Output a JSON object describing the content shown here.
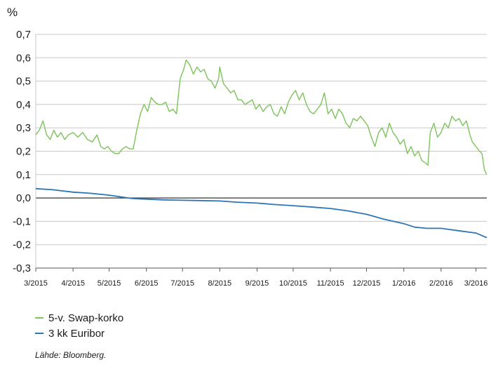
{
  "chart_data": {
    "type": "line",
    "title": "",
    "ylabel": "%",
    "xlabel": "",
    "ylim": [
      -0.3,
      0.7
    ],
    "yticks": [
      0.7,
      0.6,
      0.5,
      0.4,
      0.3,
      0.2,
      0.1,
      0.0,
      -0.1,
      -0.2,
      -0.3
    ],
    "ytick_labels": [
      "0,7",
      "0,6",
      "0,5",
      "0,4",
      "0,3",
      "0,2",
      "0,1",
      "0,0",
      "-0,1",
      "-0,2",
      "-0,3"
    ],
    "x_range": [
      "2015-03-01",
      "2016-03-10"
    ],
    "xtick_labels": [
      "3/2015",
      "4/2015",
      "5/2015",
      "6/2015",
      "7/2015",
      "8/2015",
      "9/2015",
      "10/2015",
      "11/2015",
      "12/2015",
      "1/2016",
      "2/2016",
      "3/2016"
    ],
    "xticks": [
      "2015-03-01",
      "2015-04-01",
      "2015-05-01",
      "2015-06-01",
      "2015-07-01",
      "2015-08-01",
      "2015-09-01",
      "2015-10-01",
      "2015-11-01",
      "2015-12-01",
      "2016-01-01",
      "2016-02-01",
      "2016-03-01"
    ],
    "grid": true,
    "legend_position": "bottom-left",
    "series": [
      {
        "name": "5-v. Swap-korko",
        "color": "#7cc35a",
        "points": [
          [
            "2015-03-01",
            0.27
          ],
          [
            "2015-03-04",
            0.29
          ],
          [
            "2015-03-07",
            0.33
          ],
          [
            "2015-03-10",
            0.27
          ],
          [
            "2015-03-13",
            0.25
          ],
          [
            "2015-03-16",
            0.29
          ],
          [
            "2015-03-19",
            0.26
          ],
          [
            "2015-03-22",
            0.28
          ],
          [
            "2015-03-25",
            0.25
          ],
          [
            "2015-03-28",
            0.27
          ],
          [
            "2015-04-01",
            0.28
          ],
          [
            "2015-04-05",
            0.26
          ],
          [
            "2015-04-09",
            0.28
          ],
          [
            "2015-04-13",
            0.25
          ],
          [
            "2015-04-17",
            0.24
          ],
          [
            "2015-04-21",
            0.27
          ],
          [
            "2015-04-24",
            0.22
          ],
          [
            "2015-04-27",
            0.21
          ],
          [
            "2015-04-30",
            0.22
          ],
          [
            "2015-05-03",
            0.2
          ],
          [
            "2015-05-06",
            0.19
          ],
          [
            "2015-05-09",
            0.19
          ],
          [
            "2015-05-12",
            0.21
          ],
          [
            "2015-05-15",
            0.22
          ],
          [
            "2015-05-18",
            0.21
          ],
          [
            "2015-05-21",
            0.21
          ],
          [
            "2015-05-24",
            0.29
          ],
          [
            "2015-05-27",
            0.36
          ],
          [
            "2015-05-30",
            0.4
          ],
          [
            "2015-06-02",
            0.37
          ],
          [
            "2015-06-05",
            0.43
          ],
          [
            "2015-06-08",
            0.41
          ],
          [
            "2015-06-11",
            0.4
          ],
          [
            "2015-06-14",
            0.4
          ],
          [
            "2015-06-17",
            0.41
          ],
          [
            "2015-06-20",
            0.37
          ],
          [
            "2015-06-23",
            0.38
          ],
          [
            "2015-06-26",
            0.36
          ],
          [
            "2015-06-29",
            0.51
          ],
          [
            "2015-07-02",
            0.55
          ],
          [
            "2015-07-04",
            0.59
          ],
          [
            "2015-07-07",
            0.57
          ],
          [
            "2015-07-10",
            0.53
          ],
          [
            "2015-07-13",
            0.56
          ],
          [
            "2015-07-16",
            0.54
          ],
          [
            "2015-07-19",
            0.55
          ],
          [
            "2015-07-22",
            0.51
          ],
          [
            "2015-07-25",
            0.5
          ],
          [
            "2015-07-28",
            0.47
          ],
          [
            "2015-07-31",
            0.51
          ],
          [
            "2015-08-01",
            0.56
          ],
          [
            "2015-08-04",
            0.49
          ],
          [
            "2015-08-07",
            0.47
          ],
          [
            "2015-08-10",
            0.45
          ],
          [
            "2015-08-13",
            0.46
          ],
          [
            "2015-08-16",
            0.42
          ],
          [
            "2015-08-19",
            0.42
          ],
          [
            "2015-08-22",
            0.4
          ],
          [
            "2015-08-25",
            0.41
          ],
          [
            "2015-08-28",
            0.42
          ],
          [
            "2015-08-31",
            0.38
          ],
          [
            "2015-09-03",
            0.4
          ],
          [
            "2015-09-06",
            0.37
          ],
          [
            "2015-09-09",
            0.39
          ],
          [
            "2015-09-12",
            0.4
          ],
          [
            "2015-09-15",
            0.36
          ],
          [
            "2015-09-18",
            0.35
          ],
          [
            "2015-09-21",
            0.39
          ],
          [
            "2015-09-24",
            0.36
          ],
          [
            "2015-09-27",
            0.41
          ],
          [
            "2015-09-30",
            0.44
          ],
          [
            "2015-10-03",
            0.46
          ],
          [
            "2015-10-06",
            0.42
          ],
          [
            "2015-10-09",
            0.45
          ],
          [
            "2015-10-12",
            0.4
          ],
          [
            "2015-10-15",
            0.37
          ],
          [
            "2015-10-18",
            0.36
          ],
          [
            "2015-10-21",
            0.38
          ],
          [
            "2015-10-24",
            0.4
          ],
          [
            "2015-10-27",
            0.45
          ],
          [
            "2015-10-30",
            0.36
          ],
          [
            "2015-11-02",
            0.38
          ],
          [
            "2015-11-05",
            0.34
          ],
          [
            "2015-11-08",
            0.38
          ],
          [
            "2015-11-11",
            0.36
          ],
          [
            "2015-11-14",
            0.32
          ],
          [
            "2015-11-17",
            0.3
          ],
          [
            "2015-11-20",
            0.34
          ],
          [
            "2015-11-23",
            0.33
          ],
          [
            "2015-11-26",
            0.35
          ],
          [
            "2015-11-29",
            0.33
          ],
          [
            "2015-12-02",
            0.31
          ],
          [
            "2015-12-05",
            0.26
          ],
          [
            "2015-12-08",
            0.22
          ],
          [
            "2015-12-11",
            0.28
          ],
          [
            "2015-12-14",
            0.3
          ],
          [
            "2015-12-17",
            0.26
          ],
          [
            "2015-12-20",
            0.32
          ],
          [
            "2015-12-23",
            0.28
          ],
          [
            "2015-12-26",
            0.26
          ],
          [
            "2015-12-29",
            0.23
          ],
          [
            "2016-01-01",
            0.25
          ],
          [
            "2016-01-04",
            0.19
          ],
          [
            "2016-01-07",
            0.22
          ],
          [
            "2016-01-10",
            0.18
          ],
          [
            "2016-01-13",
            0.2
          ],
          [
            "2016-01-16",
            0.16
          ],
          [
            "2016-01-19",
            0.15
          ],
          [
            "2016-01-21",
            0.14
          ],
          [
            "2016-01-23",
            0.28
          ],
          [
            "2016-01-26",
            0.32
          ],
          [
            "2016-01-29",
            0.26
          ],
          [
            "2016-02-01",
            0.28
          ],
          [
            "2016-02-04",
            0.32
          ],
          [
            "2016-02-07",
            0.3
          ],
          [
            "2016-02-10",
            0.35
          ],
          [
            "2016-02-13",
            0.33
          ],
          [
            "2016-02-16",
            0.34
          ],
          [
            "2016-02-19",
            0.31
          ],
          [
            "2016-02-22",
            0.33
          ],
          [
            "2016-02-25",
            0.27
          ],
          [
            "2016-02-27",
            0.24
          ],
          [
            "2016-03-01",
            0.22
          ],
          [
            "2016-03-04",
            0.2
          ],
          [
            "2016-03-06",
            0.19
          ],
          [
            "2016-03-08",
            0.12
          ],
          [
            "2016-03-10",
            0.1
          ]
        ]
      },
      {
        "name": "3 kk Euribor",
        "color": "#2e75b6",
        "points": [
          [
            "2015-03-01",
            0.04
          ],
          [
            "2015-03-15",
            0.035
          ],
          [
            "2015-04-01",
            0.025
          ],
          [
            "2015-04-15",
            0.02
          ],
          [
            "2015-05-01",
            0.012
          ],
          [
            "2015-05-10",
            0.005
          ],
          [
            "2015-05-20",
            -0.002
          ],
          [
            "2015-06-01",
            -0.005
          ],
          [
            "2015-06-15",
            -0.008
          ],
          [
            "2015-07-01",
            -0.01
          ],
          [
            "2015-07-15",
            -0.011
          ],
          [
            "2015-08-01",
            -0.013
          ],
          [
            "2015-08-15",
            -0.018
          ],
          [
            "2015-09-01",
            -0.022
          ],
          [
            "2015-09-15",
            -0.028
          ],
          [
            "2015-10-01",
            -0.033
          ],
          [
            "2015-10-15",
            -0.038
          ],
          [
            "2015-11-01",
            -0.045
          ],
          [
            "2015-11-15",
            -0.055
          ],
          [
            "2015-12-01",
            -0.07
          ],
          [
            "2015-12-15",
            -0.09
          ],
          [
            "2016-01-01",
            -0.11
          ],
          [
            "2016-01-10",
            -0.125
          ],
          [
            "2016-01-20",
            -0.13
          ],
          [
            "2016-02-01",
            -0.13
          ],
          [
            "2016-02-15",
            -0.14
          ],
          [
            "2016-03-01",
            -0.15
          ],
          [
            "2016-03-10",
            -0.17
          ]
        ]
      }
    ],
    "source": "Lähde: Bloomberg."
  }
}
